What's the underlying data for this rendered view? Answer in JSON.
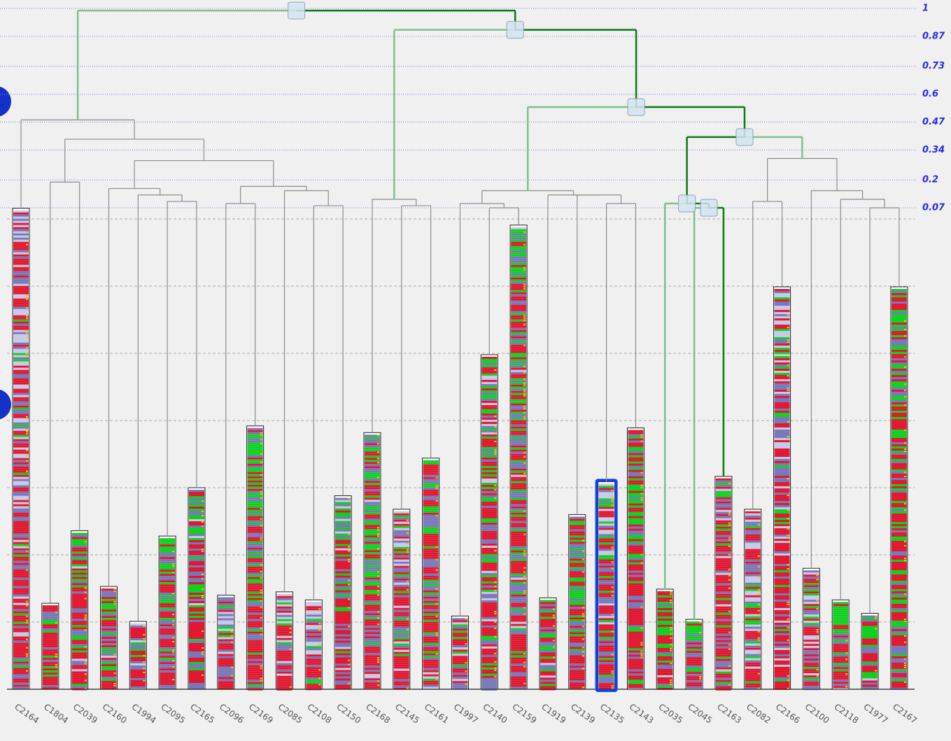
{
  "chart_data": {
    "type": "dendrogram",
    "ylim": [
      0.07,
      1
    ],
    "yticks": [
      1,
      0.87,
      0.73,
      0.6,
      0.47,
      0.34,
      0.2,
      0.07
    ],
    "bar_ylim": [
      0,
      7
    ],
    "bar_grid": [
      1,
      2,
      3,
      4,
      5,
      6,
      7
    ],
    "selected_leaf": 24,
    "highlighted_bar": 20,
    "leaves": [
      {
        "label": "C2164",
        "size": 7.16
      },
      {
        "label": "C1804",
        "size": 1.28
      },
      {
        "label": "C2039",
        "size": 2.36
      },
      {
        "label": "C2160",
        "size": 1.53
      },
      {
        "label": "C1994",
        "size": 1.01
      },
      {
        "label": "C2095",
        "size": 2.28
      },
      {
        "label": "C2165",
        "size": 3.0
      },
      {
        "label": "C2096",
        "size": 1.4
      },
      {
        "label": "C2169",
        "size": 3.92
      },
      {
        "label": "C2085",
        "size": 1.45
      },
      {
        "label": "C2108",
        "size": 1.33
      },
      {
        "label": "C2150",
        "size": 2.88
      },
      {
        "label": "C2168",
        "size": 3.82
      },
      {
        "label": "C2145",
        "size": 2.68
      },
      {
        "label": "C2161",
        "size": 3.44
      },
      {
        "label": "C1997",
        "size": 1.09
      },
      {
        "label": "C2140",
        "size": 4.98
      },
      {
        "label": "C2159",
        "size": 6.91
      },
      {
        "label": "C1919",
        "size": 1.36
      },
      {
        "label": "C2139",
        "size": 2.6
      },
      {
        "label": "C2135",
        "size": 3.09
      },
      {
        "label": "C2143",
        "size": 3.89
      },
      {
        "label": "C2035",
        "size": 1.49
      },
      {
        "label": "C2045",
        "size": 1.04
      },
      {
        "label": "C2163",
        "size": 3.17
      },
      {
        "label": "C2082",
        "size": 2.68
      },
      {
        "label": "C2166",
        "size": 5.99
      },
      {
        "label": "C2100",
        "size": 1.8
      },
      {
        "label": "C2118",
        "size": 1.33
      },
      {
        "label": "C1977",
        "size": 1.13
      },
      {
        "label": "C2167",
        "size": 5.99
      }
    ],
    "tree": {
      "height": 0.99,
      "children": [
        {
          "height": 0.48,
          "children": [
            0,
            {
              "height": 0.39,
              "children": [
                {
                  "height": 0.19,
                  "children": [
                    1,
                    2
                  ]
                },
                {
                  "height": 0.29,
                  "children": [
                    {
                      "height": 0.16,
                      "children": [
                        3,
                        {
                          "height": 0.13,
                          "children": [
                            4,
                            {
                              "height": 0.1,
                              "children": [
                                5,
                                6
                              ]
                            }
                          ]
                        }
                      ]
                    },
                    {
                      "height": 0.17,
                      "children": [
                        {
                          "height": 0.09,
                          "children": [
                            7,
                            8
                          ]
                        },
                        {
                          "height": 0.15,
                          "children": [
                            9,
                            {
                              "height": 0.08,
                              "children": [
                                10,
                                11
                              ]
                            }
                          ]
                        }
                      ]
                    }
                  ]
                }
              ]
            }
          ]
        },
        {
          "height": 0.9,
          "children": [
            {
              "height": 0.11,
              "children": [
                12,
                {
                  "height": 0.08,
                  "children": [
                    13,
                    14
                  ]
                }
              ]
            },
            {
              "height": 0.54,
              "children": [
                {
                  "height": 0.15,
                  "children": [
                    {
                      "height": 0.09,
                      "children": [
                        15,
                        {
                          "height": 0.07,
                          "children": [
                            16,
                            17
                          ]
                        }
                      ]
                    },
                    {
                      "height": 0.13,
                      "children": [
                        18,
                        {
                          "height": 0.13,
                          "children": [
                            19,
                            {
                              "height": 0.09,
                              "children": [
                                20,
                                21
                              ]
                            }
                          ]
                        }
                      ]
                    }
                  ]
                },
                {
                  "height": 0.4,
                  "children": [
                    {
                      "height": 0.09,
                      "children": [
                        22,
                        {
                          "height": 0.07,
                          "children": [
                            23,
                            24
                          ]
                        }
                      ]
                    },
                    {
                      "height": 0.3,
                      "children": [
                        {
                          "height": 0.1,
                          "children": [
                            25,
                            26
                          ]
                        },
                        {
                          "height": 0.15,
                          "children": [
                            27,
                            {
                              "height": 0.11,
                              "children": [
                                28,
                                {
                                  "height": 0.07,
                                  "children": [
                                    29,
                                    30
                                  ]
                                }
                              ]
                            }
                          ]
                        }
                      ]
                    }
                  ]
                }
              ]
            }
          ]
        }
      ]
    }
  }
}
